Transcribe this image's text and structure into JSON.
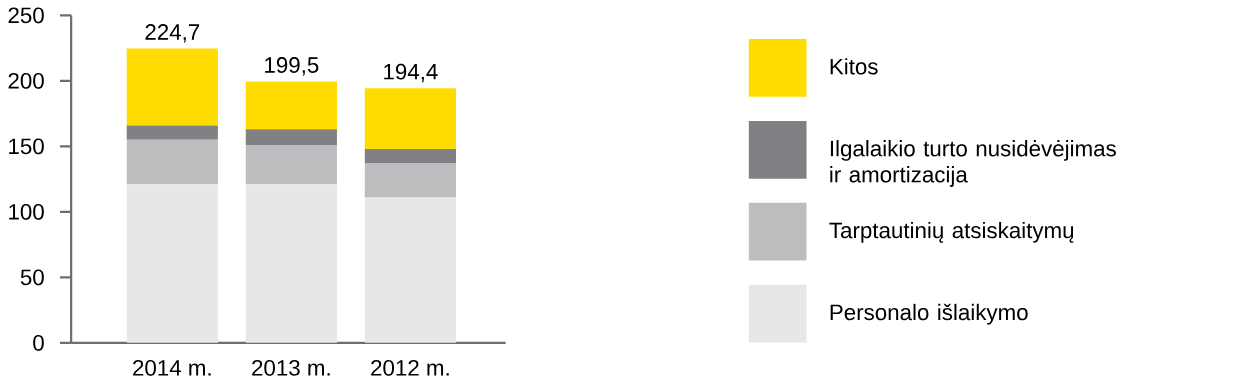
{
  "chart_data": {
    "type": "bar",
    "stacked": true,
    "categories": [
      "2014 m.",
      "2013 m.",
      "2012 m."
    ],
    "series": [
      {
        "name": "Personalo išlaikymo",
        "color": "#e6e7e8",
        "values": [
          121,
          121,
          111
        ]
      },
      {
        "name": "Tarptautinių atsiskaitymų",
        "color": "#bcbdbf",
        "values": [
          34,
          30,
          26
        ]
      },
      {
        "name": "Ilgalaikio turto nusidėvėjimas ir amortizacija",
        "color": "#808184",
        "values": [
          11,
          12,
          11
        ]
      },
      {
        "name": "Kitos",
        "color": "#ffdc00",
        "values": [
          58.7,
          36.5,
          46.4
        ]
      }
    ],
    "totals": [
      "224,7",
      "199,5",
      "194,4"
    ],
    "ylim": [
      0,
      250
    ],
    "yticks": [
      0,
      50,
      100,
      150,
      200,
      250
    ],
    "grid": false,
    "legend": "right"
  }
}
